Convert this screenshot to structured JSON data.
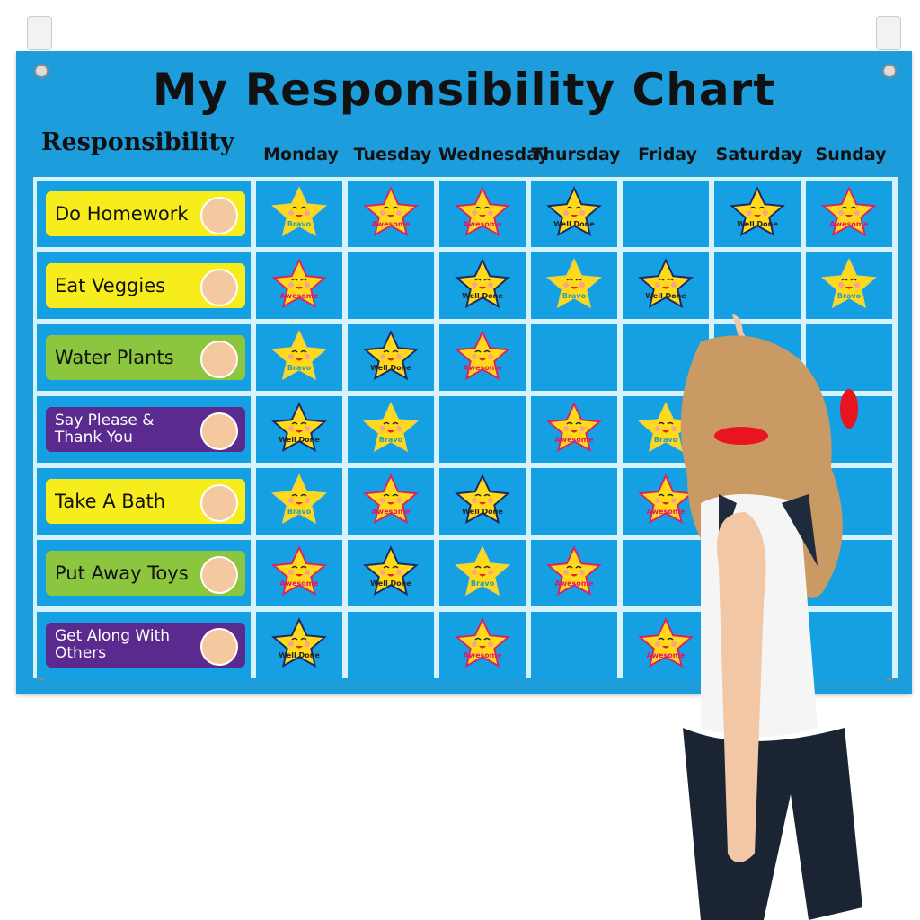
{
  "title": "My Responsibility Chart",
  "column_header": "Responsibility",
  "days": [
    "Monday",
    "Tuesday",
    "Wednesday",
    "Thursday",
    "Friday",
    "Saturday",
    "Sunday"
  ],
  "colors": {
    "board": "#1d9ddb",
    "cell": "#14a0e2",
    "grid_line": "#d6f2fb",
    "yellow_label": "#f7ec1c",
    "green_label": "#8cc63e",
    "purple_label": "#5b2a8f",
    "star": "#ffd91a"
  },
  "rows": [
    {
      "label": "Do Homework",
      "style": "y",
      "icon": "child-studying-icon",
      "stars": [
        "Bravo",
        "Awesome",
        "Awesome",
        "Well Done",
        null,
        "Well Done",
        "Awesome"
      ]
    },
    {
      "label": "Eat Veggies",
      "style": "y",
      "icon": "child-eating-salad-icon",
      "stars": [
        "Awesome",
        null,
        "Well Done",
        "Bravo",
        "Well Done",
        null,
        "Bravo"
      ]
    },
    {
      "label": "Water Plants",
      "style": "g",
      "icon": "potted-cactus-icon",
      "stars": [
        "Bravo",
        "Well Done",
        "Awesome",
        null,
        null,
        null,
        null
      ]
    },
    {
      "label": "Say Please & Thank You",
      "style": "p",
      "icon": "children-sharing-gift-icon",
      "stars": [
        "Well Done",
        "Bravo",
        null,
        "Awesome",
        "Bravo",
        null,
        null
      ]
    },
    {
      "label": "Take A Bath",
      "style": "y",
      "icon": "child-bathing-icon",
      "stars": [
        "Bravo",
        "Awesome",
        "Well Done",
        null,
        "Awesome",
        null,
        null
      ]
    },
    {
      "label": "Put Away Toys",
      "style": "g",
      "icon": "child-with-toys-icon",
      "stars": [
        "Awesome",
        "Well Done",
        "Bravo",
        "Awesome",
        null,
        null,
        null
      ]
    },
    {
      "label": "Get Along With Others",
      "style": "p",
      "icon": "handshake-icon",
      "stars": [
        "Well Done",
        null,
        "Awesome",
        null,
        "Awesome",
        null,
        null
      ]
    }
  ]
}
